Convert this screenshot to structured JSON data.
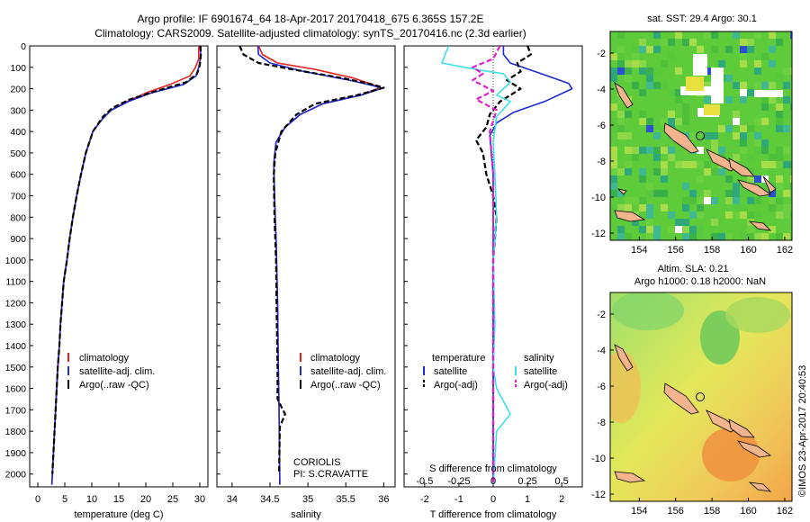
{
  "header": {
    "title_line1": "Argo profile: IF 6901674_64 18-Apr-2017 20170418_675 6.365S 157.2E",
    "title_line2": "Climatology: CARS2009. Satellite-adjusted climatology: synTS_20170416.nc (2.3d earlier)"
  },
  "colors": {
    "climatology": "#e8201e",
    "satellite": "#1c2ad6",
    "argo": "#000000",
    "salinity_satellite": "#3de0e8",
    "salinity_argo": "#e020d0"
  },
  "chart_data": [
    {
      "type": "line",
      "id": "temperature",
      "xlabel": "temperature (deg C)",
      "ylabel": "depth",
      "xlim": [
        -1.5,
        31.5
      ],
      "ylim": [
        2060,
        0
      ],
      "xticks": [
        0,
        5,
        10,
        15,
        20,
        25,
        30
      ],
      "yticks": [
        0,
        100,
        200,
        300,
        400,
        500,
        600,
        700,
        800,
        900,
        1000,
        1100,
        1200,
        1300,
        1400,
        1500,
        1600,
        1700,
        1800,
        1900,
        2000
      ],
      "legend": [
        "climatology",
        "satellite-adj. clim.",
        "Argo(..raw -QC)"
      ],
      "series": [
        {
          "name": "climatology",
          "style": "solid",
          "color": "#e8201e",
          "points": [
            [
              29.8,
              0
            ],
            [
              29.8,
              60
            ],
            [
              29.2,
              100
            ],
            [
              28.2,
              140
            ],
            [
              24.5,
              180
            ],
            [
              20,
              220
            ],
            [
              16.5,
              260
            ],
            [
              13.5,
              300
            ],
            [
              12,
              340
            ],
            [
              10.2,
              400
            ],
            [
              8.9,
              500
            ],
            [
              8,
              600
            ],
            [
              7.2,
              700
            ],
            [
              6.5,
              800
            ],
            [
              5.9,
              900
            ],
            [
              5.4,
              1000
            ],
            [
              4.8,
              1100
            ],
            [
              4.5,
              1200
            ],
            [
              4.2,
              1300
            ],
            [
              4,
              1400
            ],
            [
              3.7,
              1500
            ],
            [
              3.5,
              1600
            ],
            [
              3.3,
              1700
            ],
            [
              3.1,
              1800
            ],
            [
              2.9,
              1900
            ],
            [
              2.7,
              2000
            ],
            [
              2.6,
              2050
            ]
          ]
        },
        {
          "name": "satellite-adj. clim.",
          "style": "solid",
          "color": "#1c2ad6",
          "points": [
            [
              30.2,
              0
            ],
            [
              30.1,
              60
            ],
            [
              29.8,
              100
            ],
            [
              29.3,
              140
            ],
            [
              27,
              180
            ],
            [
              21,
              220
            ],
            [
              16.8,
              260
            ],
            [
              13.6,
              300
            ],
            [
              12,
              340
            ],
            [
              10.2,
              400
            ],
            [
              8.9,
              500
            ],
            [
              8,
              600
            ],
            [
              7.2,
              700
            ],
            [
              6.5,
              800
            ],
            [
              5.9,
              900
            ],
            [
              5.4,
              1000
            ],
            [
              4.8,
              1100
            ],
            [
              4.5,
              1200
            ],
            [
              4.2,
              1300
            ],
            [
              4,
              1400
            ],
            [
              3.7,
              1500
            ],
            [
              3.5,
              1600
            ],
            [
              3.3,
              1700
            ],
            [
              3.1,
              1800
            ],
            [
              2.9,
              1900
            ],
            [
              2.7,
              2000
            ],
            [
              2.6,
              2050
            ]
          ]
        },
        {
          "name": "Argo(..raw -QC)",
          "style": "dashed",
          "color": "#000000",
          "points": [
            [
              30.1,
              0
            ],
            [
              30.2,
              40
            ],
            [
              30,
              90
            ],
            [
              29.5,
              130
            ],
            [
              27.5,
              170
            ],
            [
              22,
              210
            ],
            [
              17,
              250
            ],
            [
              13.8,
              290
            ],
            [
              12.1,
              330
            ],
            [
              10.2,
              400
            ],
            [
              8.9,
              500
            ],
            [
              8,
              600
            ],
            [
              7.2,
              700
            ],
            [
              6.5,
              800
            ],
            [
              5.9,
              900
            ],
            [
              5.4,
              1000
            ],
            [
              4.8,
              1100
            ],
            [
              4.5,
              1200
            ],
            [
              4.2,
              1300
            ],
            [
              4,
              1400
            ],
            [
              3.7,
              1500
            ],
            [
              3.5,
              1600
            ],
            [
              3.3,
              1700
            ],
            [
              3.1,
              1800
            ],
            [
              2.9,
              1900
            ],
            [
              2.7,
              2000
            ]
          ]
        }
      ]
    },
    {
      "type": "line",
      "id": "salinity",
      "xlabel": "salinity",
      "xlim": [
        33.8,
        36.15
      ],
      "ylim": [
        2060,
        0
      ],
      "xticks": [
        34,
        34.5,
        35,
        35.5,
        36
      ],
      "legend": [
        "climatology",
        "satellite-adj. clim.",
        "Argo(..raw -QC)"
      ],
      "annotation": [
        "CORIOLIS",
        "PI: S.CRAVATTE"
      ],
      "series": [
        {
          "name": "climatology",
          "style": "solid",
          "color": "#e8201e",
          "points": [
            [
              34.35,
              0
            ],
            [
              34.4,
              40
            ],
            [
              34.6,
              80
            ],
            [
              35.1,
              110
            ],
            [
              35.6,
              150
            ],
            [
              35.85,
              180
            ],
            [
              35.95,
              195
            ],
            [
              35.7,
              230
            ],
            [
              35.2,
              270
            ],
            [
              34.9,
              320
            ],
            [
              34.7,
              380
            ],
            [
              34.58,
              450
            ],
            [
              34.55,
              550
            ],
            [
              34.56,
              700
            ],
            [
              34.58,
              900
            ],
            [
              34.6,
              1200
            ],
            [
              34.61,
              1500
            ],
            [
              34.62,
              1700
            ],
            [
              34.63,
              2050
            ]
          ]
        },
        {
          "name": "satellite-adj. clim.",
          "style": "solid",
          "color": "#1c2ad6",
          "points": [
            [
              34.34,
              0
            ],
            [
              34.35,
              40
            ],
            [
              34.5,
              80
            ],
            [
              34.95,
              120
            ],
            [
              35.55,
              160
            ],
            [
              35.85,
              185
            ],
            [
              35.98,
              198
            ],
            [
              35.7,
              230
            ],
            [
              35.2,
              270
            ],
            [
              34.9,
              320
            ],
            [
              34.7,
              380
            ],
            [
              34.58,
              450
            ],
            [
              34.55,
              550
            ],
            [
              34.56,
              700
            ],
            [
              34.58,
              900
            ],
            [
              34.6,
              1200
            ],
            [
              34.61,
              1500
            ],
            [
              34.62,
              1700
            ],
            [
              34.63,
              2050
            ]
          ]
        },
        {
          "name": "Argo(..raw -QC)",
          "style": "dashed",
          "color": "#000000",
          "points": [
            [
              34.1,
              0
            ],
            [
              34.15,
              40
            ],
            [
              34.35,
              80
            ],
            [
              34.8,
              110
            ],
            [
              35.45,
              150
            ],
            [
              35.85,
              180
            ],
            [
              36,
              195
            ],
            [
              35.65,
              230
            ],
            [
              35.1,
              270
            ],
            [
              34.85,
              320
            ],
            [
              34.65,
              400
            ],
            [
              34.57,
              500
            ],
            [
              34.55,
              600
            ],
            [
              34.56,
              800
            ],
            [
              34.58,
              1000
            ],
            [
              34.59,
              1300
            ],
            [
              34.6,
              1500
            ],
            [
              34.6,
              1650
            ],
            [
              34.7,
              1720
            ],
            [
              34.63,
              1780
            ],
            [
              34.62,
              2000
            ]
          ]
        }
      ]
    },
    {
      "type": "line",
      "id": "difference",
      "xlabel": "T difference from climatology",
      "xlabel_top": "S difference from climatology",
      "xlim": [
        -2.6,
        2.6
      ],
      "ylim": [
        2060,
        0
      ],
      "xticks": [
        -2,
        -1,
        0,
        1,
        2
      ],
      "xticks_salinity": [
        "-0.5",
        "-0.25",
        "0",
        "0.25",
        "0.5"
      ],
      "legend_temperature_title": "temperature",
      "legend_salinity_title": "salinity",
      "legend_entries": [
        "satellite",
        "Argo(-adj)",
        "satellite",
        "Argo(-adj)"
      ],
      "series": [
        {
          "name": "T satellite",
          "style": "solid",
          "color": "#1c2ad6",
          "points": [
            [
              0.3,
              0
            ],
            [
              0.3,
              40
            ],
            [
              0.5,
              80
            ],
            [
              1.4,
              130
            ],
            [
              2.2,
              175
            ],
            [
              2.3,
              200
            ],
            [
              1.5,
              260
            ],
            [
              0.6,
              310
            ],
            [
              0.1,
              360
            ],
            [
              -0.1,
              420
            ],
            [
              0,
              600
            ],
            [
              0,
              900
            ],
            [
              0,
              1500
            ],
            [
              0,
              2050
            ]
          ]
        },
        {
          "name": "T Argo(-adj)",
          "style": "dashed",
          "color": "#000000",
          "points": [
            [
              1,
              0
            ],
            [
              1.1,
              40
            ],
            [
              0.7,
              80
            ],
            [
              0.8,
              120
            ],
            [
              0.4,
              160
            ],
            [
              0.8,
              200
            ],
            [
              0.2,
              260
            ],
            [
              -0.1,
              320
            ],
            [
              -0.2,
              380
            ],
            [
              -0.5,
              440
            ],
            [
              -0.3,
              500
            ],
            [
              -0.2,
              600
            ],
            [
              0,
              700
            ],
            [
              0.1,
              800
            ],
            [
              0,
              1000
            ],
            [
              0,
              1500
            ],
            [
              0,
              1750
            ],
            [
              0,
              2050
            ]
          ]
        },
        {
          "name": "S satellite",
          "style": "solid",
          "color": "#3de0e8",
          "points": [
            [
              -1.3,
              0
            ],
            [
              -1.5,
              80
            ],
            [
              -0.5,
              110
            ],
            [
              0.3,
              130
            ],
            [
              0.5,
              170
            ],
            [
              0.1,
              230
            ],
            [
              0.5,
              260
            ],
            [
              0.1,
              330
            ],
            [
              0,
              450
            ],
            [
              0.05,
              600
            ],
            [
              0.1,
              800
            ],
            [
              0,
              1000
            ],
            [
              0.05,
              1300
            ],
            [
              0,
              1500
            ],
            [
              0.1,
              1600
            ],
            [
              0.5,
              1720
            ],
            [
              0.1,
              1800
            ],
            [
              0,
              2050
            ]
          ]
        },
        {
          "name": "S Argo(-adj)",
          "style": "dashed",
          "color": "#e020d0",
          "points": [
            [
              0.2,
              0
            ],
            [
              0,
              60
            ],
            [
              -0.6,
              100
            ],
            [
              -0.3,
              130
            ],
            [
              -0.6,
              160
            ],
            [
              0,
              210
            ],
            [
              -0.5,
              250
            ],
            [
              0.1,
              300
            ],
            [
              -0.1,
              400
            ],
            [
              0,
              600
            ],
            [
              0,
              2050
            ]
          ]
        }
      ]
    }
  ],
  "maps": {
    "sst": {
      "title": "sat. SST: 29.4 Argo: 30.1",
      "lon_ticks": [
        "154",
        "156",
        "158",
        "160",
        "162"
      ],
      "lat_ticks": [
        "-2",
        "-4",
        "-6",
        "-8",
        "-10",
        "-12"
      ],
      "argo_position": {
        "lon": 157.2,
        "lat": -6.365
      }
    },
    "sla": {
      "title_line1": "Altim. SLA: 0.21",
      "title_line2": "Argo h1000: 0.18 h2000: NaN",
      "lon_ticks": [
        "154",
        "156",
        "158",
        "160",
        "162"
      ],
      "lat_ticks": [
        "-2",
        "-4",
        "-6",
        "-8",
        "-10",
        "-12"
      ],
      "argo_position": {
        "lon": 157.2,
        "lat": -6.365
      }
    }
  },
  "footer": {
    "stamp": "©IMOS 23-Apr-2017 20:40:53"
  }
}
